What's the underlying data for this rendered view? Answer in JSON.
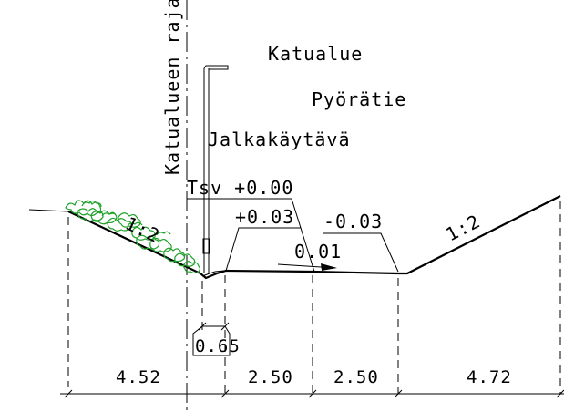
{
  "labels": {
    "boundary": "Katualueen raja",
    "street_area": "Katualue",
    "bike_path": "Pyörätie",
    "sidewalk": "Jalkakäytävä",
    "tsv": "Tsv +0.00",
    "elev_plus": "+0.03",
    "elev_minus": "-0.03",
    "slope_crossfall": "0.01",
    "slope_left": "1:2",
    "slope_right": "1:2"
  },
  "dimensions": {
    "d1": "4.52",
    "d2": "2.50",
    "d3": "2.50",
    "d4": "4.72",
    "d_small": "0.65"
  },
  "colors": {
    "line": "#000000",
    "vegetation": "#1fa12a"
  }
}
